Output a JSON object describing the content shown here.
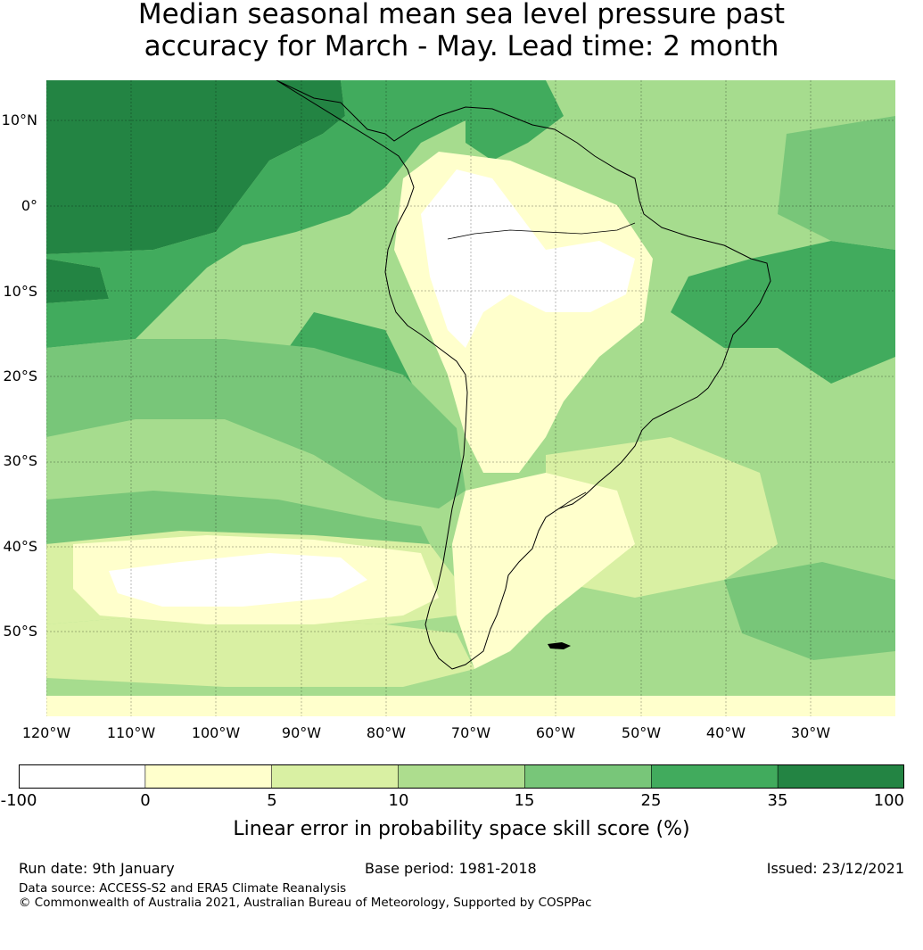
{
  "title": {
    "line1": "Median seasonal mean sea level pressure past",
    "line2": "accuracy for March - May. Lead time: 2 month"
  },
  "map": {
    "lat_labels": [
      "10°N",
      "0°",
      "10°S",
      "20°S",
      "30°S",
      "40°S",
      "50°S"
    ],
    "lon_labels": [
      "120°W",
      "110°W",
      "100°W",
      "90°W",
      "80°W",
      "70°W",
      "60°W",
      "50°W",
      "40°W",
      "30°W"
    ],
    "ocean_fill_color": "#a6dc8e",
    "land_outline_color": "#000000"
  },
  "colorbar": {
    "label": "Linear error in probability space skill score (%)",
    "ticks": [
      "-100",
      "0",
      "5",
      "10",
      "15",
      "25",
      "35",
      "100"
    ],
    "colors": [
      "#ffffff",
      "#ffffcc",
      "#d9f0a3",
      "#addd8e",
      "#78c679",
      "#41ab5d",
      "#238443"
    ]
  },
  "footer": {
    "run_date": "Run date: 9th January",
    "base_period": "Base period: 1981-2018",
    "issued": "Issued: 23/12/2021",
    "data_source": "Data source: ACCESS-S2 and ERA5 Climate Reanalysis",
    "copyright": "© Commonwealth of Australia 2021, Australian Bureau of Meteorology, Supported by COSPPac"
  }
}
